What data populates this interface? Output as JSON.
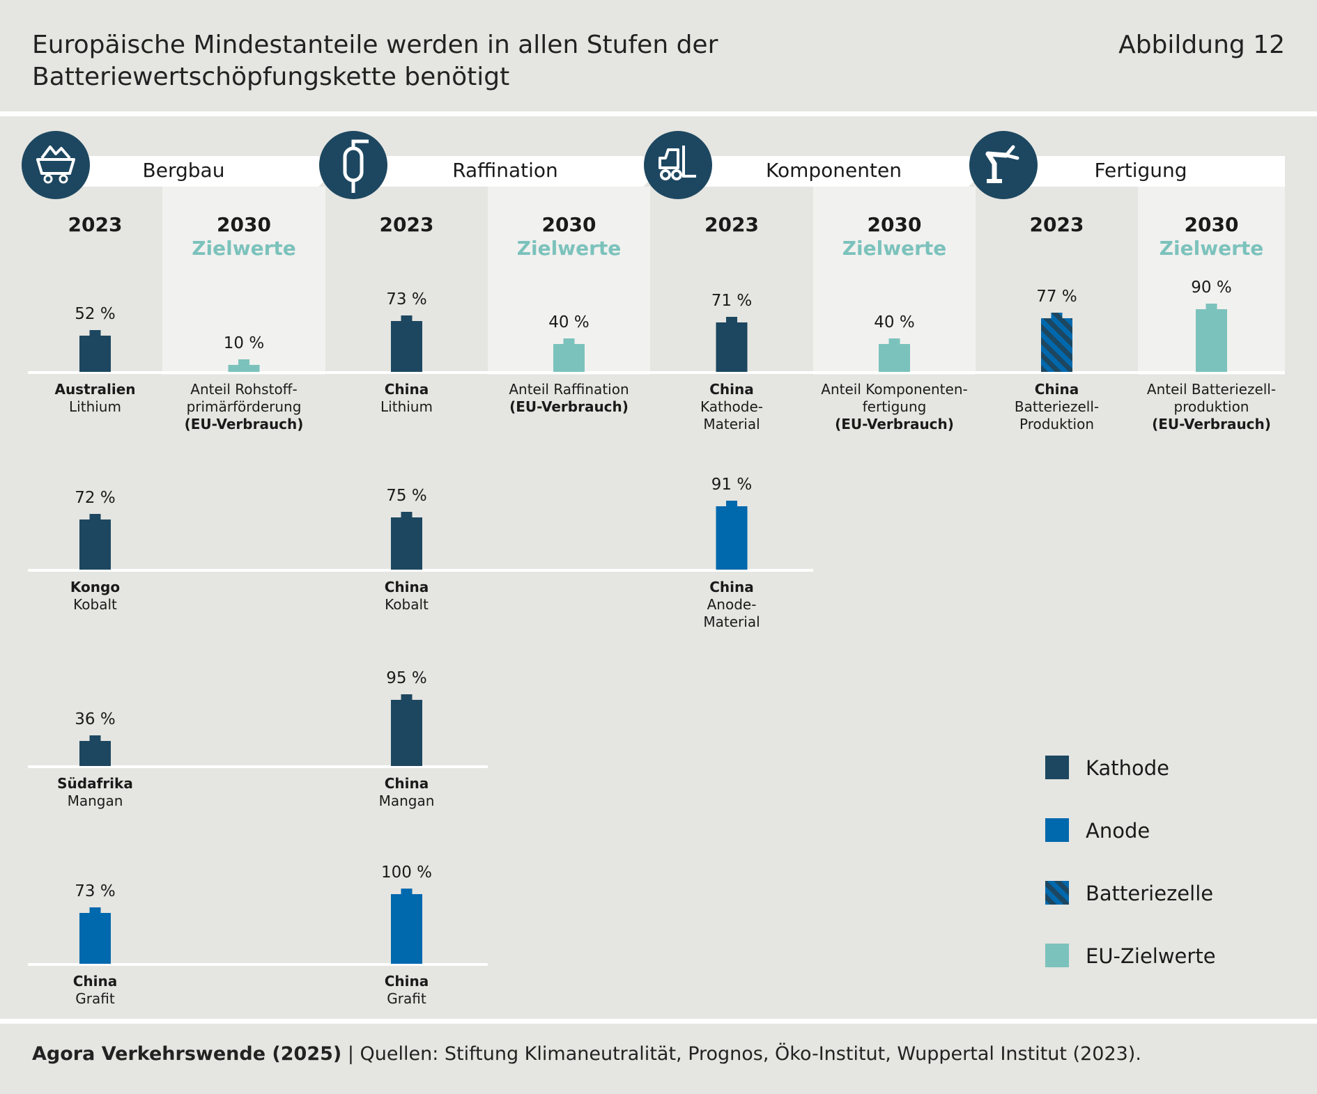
{
  "header": {
    "title": "Europäische Mindestanteile werden in allen Stufen der Batteriewertschöpfungskette benötigt",
    "figure_label": "Abbildung 12"
  },
  "footer": {
    "source_bold": "Agora Verkehrswende (2025)",
    "separator": " | ",
    "source_text": "Quellen: Stiftung Klimaneutralität, Prognos, Öko-Institut, Wuppertal Institut (2023)."
  },
  "colors": {
    "kathode": "#1d4760",
    "anode": "#0068ad",
    "batteriezelle_a": "#1d4760",
    "batteriezelle_b": "#0068ad",
    "eu": "#7cc2bc",
    "zielwerte_text": "#7cc2bc",
    "icon_circle": "#1d4760"
  },
  "chart_data": {
    "type": "bar",
    "value_suffix": " %",
    "stages": [
      {
        "name": "Bergbau",
        "icon": "mining-cart-icon",
        "columns": [
          {
            "year": "2023",
            "items": [
              {
                "value": 52,
                "series": "Kathode",
                "label_lines": [
                  {
                    "t": "Australien",
                    "b": true
                  },
                  {
                    "t": "Lithium",
                    "b": false
                  }
                ]
              },
              {
                "value": 72,
                "series": "Kathode",
                "label_lines": [
                  {
                    "t": "Kongo",
                    "b": true
                  },
                  {
                    "t": "Kobalt",
                    "b": false
                  }
                ]
              },
              {
                "value": 36,
                "series": "Kathode",
                "label_lines": [
                  {
                    "t": "Südafrika",
                    "b": true
                  },
                  {
                    "t": "Mangan",
                    "b": false
                  }
                ]
              },
              {
                "value": 73,
                "series": "Anode",
                "label_lines": [
                  {
                    "t": "China",
                    "b": true
                  },
                  {
                    "t": "Grafit",
                    "b": false
                  }
                ]
              }
            ]
          },
          {
            "year": "2030",
            "subtitle": "Zielwerte",
            "items": [
              {
                "value": 10,
                "series": "EU-Zielwerte",
                "label_lines": [
                  {
                    "t": "Anteil Rohstoff-",
                    "b": false
                  },
                  {
                    "t": "primärförderung",
                    "b": false
                  },
                  {
                    "t": "(EU-Verbrauch)",
                    "b": true
                  }
                ]
              }
            ]
          }
        ]
      },
      {
        "name": "Raffination",
        "icon": "refinery-tank-icon",
        "columns": [
          {
            "year": "2023",
            "items": [
              {
                "value": 73,
                "series": "Kathode",
                "label_lines": [
                  {
                    "t": "China",
                    "b": true
                  },
                  {
                    "t": "Lithium",
                    "b": false
                  }
                ]
              },
              {
                "value": 75,
                "series": "Kathode",
                "label_lines": [
                  {
                    "t": "China",
                    "b": true
                  },
                  {
                    "t": "Kobalt",
                    "b": false
                  }
                ]
              },
              {
                "value": 95,
                "series": "Kathode",
                "label_lines": [
                  {
                    "t": "China",
                    "b": true
                  },
                  {
                    "t": "Mangan",
                    "b": false
                  }
                ]
              },
              {
                "value": 100,
                "series": "Anode",
                "label_lines": [
                  {
                    "t": "China",
                    "b": true
                  },
                  {
                    "t": "Grafit",
                    "b": false
                  }
                ]
              }
            ]
          },
          {
            "year": "2030",
            "subtitle": "Zielwerte",
            "items": [
              {
                "value": 40,
                "series": "EU-Zielwerte",
                "label_lines": [
                  {
                    "t": "Anteil Raffination",
                    "b": false
                  },
                  {
                    "t": "(EU-Verbrauch)",
                    "b": true
                  }
                ]
              }
            ]
          }
        ]
      },
      {
        "name": "Komponenten",
        "icon": "forklift-icon",
        "columns": [
          {
            "year": "2023",
            "items": [
              {
                "value": 71,
                "series": "Kathode",
                "label_lines": [
                  {
                    "t": "China",
                    "b": true
                  },
                  {
                    "t": "Kathode-",
                    "b": false
                  },
                  {
                    "t": "Material",
                    "b": false
                  }
                ]
              },
              {
                "value": 91,
                "series": "Anode",
                "label_lines": [
                  {
                    "t": "China",
                    "b": true
                  },
                  {
                    "t": "Anode-",
                    "b": false
                  },
                  {
                    "t": "Material",
                    "b": false
                  }
                ]
              }
            ]
          },
          {
            "year": "2030",
            "subtitle": "Zielwerte",
            "items": [
              {
                "value": 40,
                "series": "EU-Zielwerte",
                "label_lines": [
                  {
                    "t": "Anteil Komponenten-",
                    "b": false
                  },
                  {
                    "t": "fertigung",
                    "b": false
                  },
                  {
                    "t": "(EU-Verbrauch)",
                    "b": true
                  }
                ]
              }
            ]
          }
        ]
      },
      {
        "name": "Fertigung",
        "icon": "robot-arm-icon",
        "columns": [
          {
            "year": "2023",
            "items": [
              {
                "value": 77,
                "series": "Batteriezelle",
                "label_lines": [
                  {
                    "t": "China",
                    "b": true
                  },
                  {
                    "t": "Batteriezell-",
                    "b": false
                  },
                  {
                    "t": "Produktion",
                    "b": false
                  }
                ]
              }
            ]
          },
          {
            "year": "2030",
            "subtitle": "Zielwerte",
            "items": [
              {
                "value": 90,
                "series": "EU-Zielwerte",
                "label_lines": [
                  {
                    "t": "Anteil Batteriezell-",
                    "b": false
                  },
                  {
                    "t": "produktion",
                    "b": false
                  },
                  {
                    "t": "(EU-Verbrauch)",
                    "b": true
                  }
                ]
              }
            ]
          }
        ]
      }
    ],
    "legend": [
      {
        "name": "Kathode",
        "key": "kathode"
      },
      {
        "name": "Anode",
        "key": "anode"
      },
      {
        "name": "Batteriezelle",
        "key": "batteriezelle"
      },
      {
        "name": "EU-Zielwerte",
        "key": "eu"
      }
    ],
    "legend_position": "bottom-right"
  }
}
